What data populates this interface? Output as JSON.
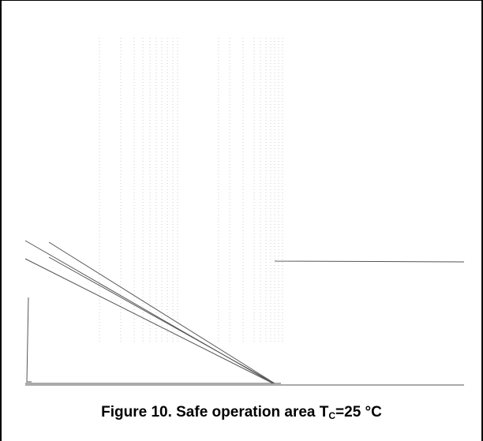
{
  "caption": {
    "prefix": "Figure 10. Safe operation area T",
    "subscript": "C",
    "suffix": "=25 °C"
  },
  "chart_data": {
    "type": "line",
    "title": "Figure 10. Safe operation area TC=25 °C",
    "xlabel": "",
    "ylabel": "",
    "series": [
      {
        "x": [
          0,
          1
        ],
        "y": [
          0.84,
          0.08
        ]
      },
      {
        "x": [
          0.1,
          1
        ],
        "y": [
          0.84,
          0.08
        ]
      },
      {
        "x": [
          0,
          1
        ],
        "y": [
          0.73,
          0.08
        ]
      },
      {
        "x": [
          0.1,
          1
        ],
        "y": [
          0.73,
          0.08
        ]
      },
      {
        "x": [
          1,
          3.3
        ],
        "y": [
          0.7,
          0.7
        ]
      },
      {
        "x": [
          0.03,
          0.03,
          0.04
        ],
        "y": [
          0.48,
          0.02,
          0.02
        ]
      },
      {
        "x": [
          0,
          3.3
        ],
        "y": [
          0.02,
          0.02
        ]
      }
    ],
    "grid": true
  }
}
